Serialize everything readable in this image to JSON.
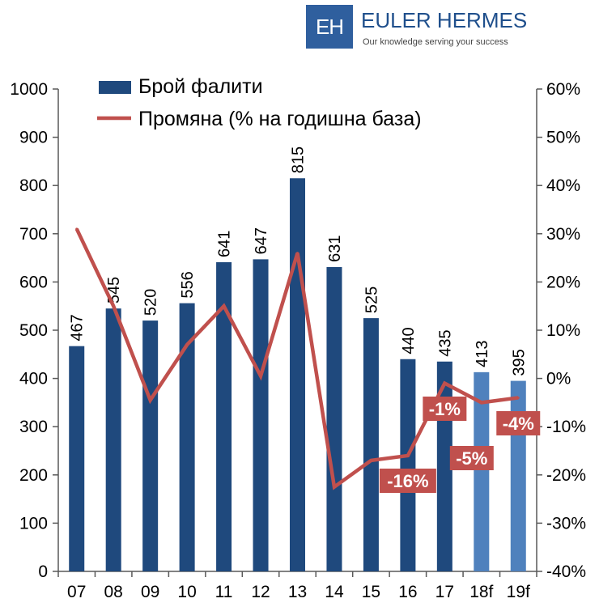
{
  "logo": {
    "mark": "EH",
    "name": "EULER HERMES",
    "tagline": "Our knowledge serving your success"
  },
  "colors": {
    "bar_actual": "#1f497d",
    "bar_forecast": "#4f81bd",
    "line": "#c0504d",
    "axis": "#595959",
    "text": "#000000"
  },
  "chart_data": {
    "type": "bar",
    "categories": [
      "07",
      "08",
      "09",
      "10",
      "11",
      "12",
      "13",
      "14",
      "15",
      "16",
      "17",
      "18f",
      "19f"
    ],
    "series": [
      {
        "name": "Брой фалити",
        "type": "bar",
        "axis": "left",
        "values": [
          467,
          545,
          520,
          556,
          641,
          647,
          815,
          631,
          525,
          440,
          435,
          413,
          395
        ],
        "forecast_categories": [
          "18f",
          "19f"
        ]
      },
      {
        "name": "Промяна (% на годишна база)",
        "type": "line",
        "axis": "right",
        "values": [
          31,
          15,
          -4.5,
          7,
          15,
          0.5,
          26,
          -22.5,
          -17,
          -16,
          -1,
          -5,
          -4
        ]
      }
    ],
    "point_labels": [
      {
        "category": "16",
        "text": "-16%"
      },
      {
        "category": "17",
        "text": "-1%"
      },
      {
        "category": "18f",
        "text": "-5%"
      },
      {
        "category": "19f",
        "text": "-4%"
      }
    ],
    "y_left": {
      "min": 0,
      "max": 1000,
      "step": 100,
      "ticks": [
        "0",
        "100",
        "200",
        "300",
        "400",
        "500",
        "600",
        "700",
        "800",
        "900",
        "1000"
      ]
    },
    "y_right": {
      "min": -40,
      "max": 60,
      "step": 10,
      "ticks": [
        "-40%",
        "-30%",
        "-20%",
        "-10%",
        "0%",
        "10%",
        "20%",
        "30%",
        "40%",
        "50%",
        "60%"
      ]
    },
    "legend": {
      "position": "top-left",
      "items": [
        "Брой фалити",
        "Промяна (% на годишна база)"
      ]
    },
    "title": "",
    "xlabel": "",
    "ylabel": ""
  }
}
